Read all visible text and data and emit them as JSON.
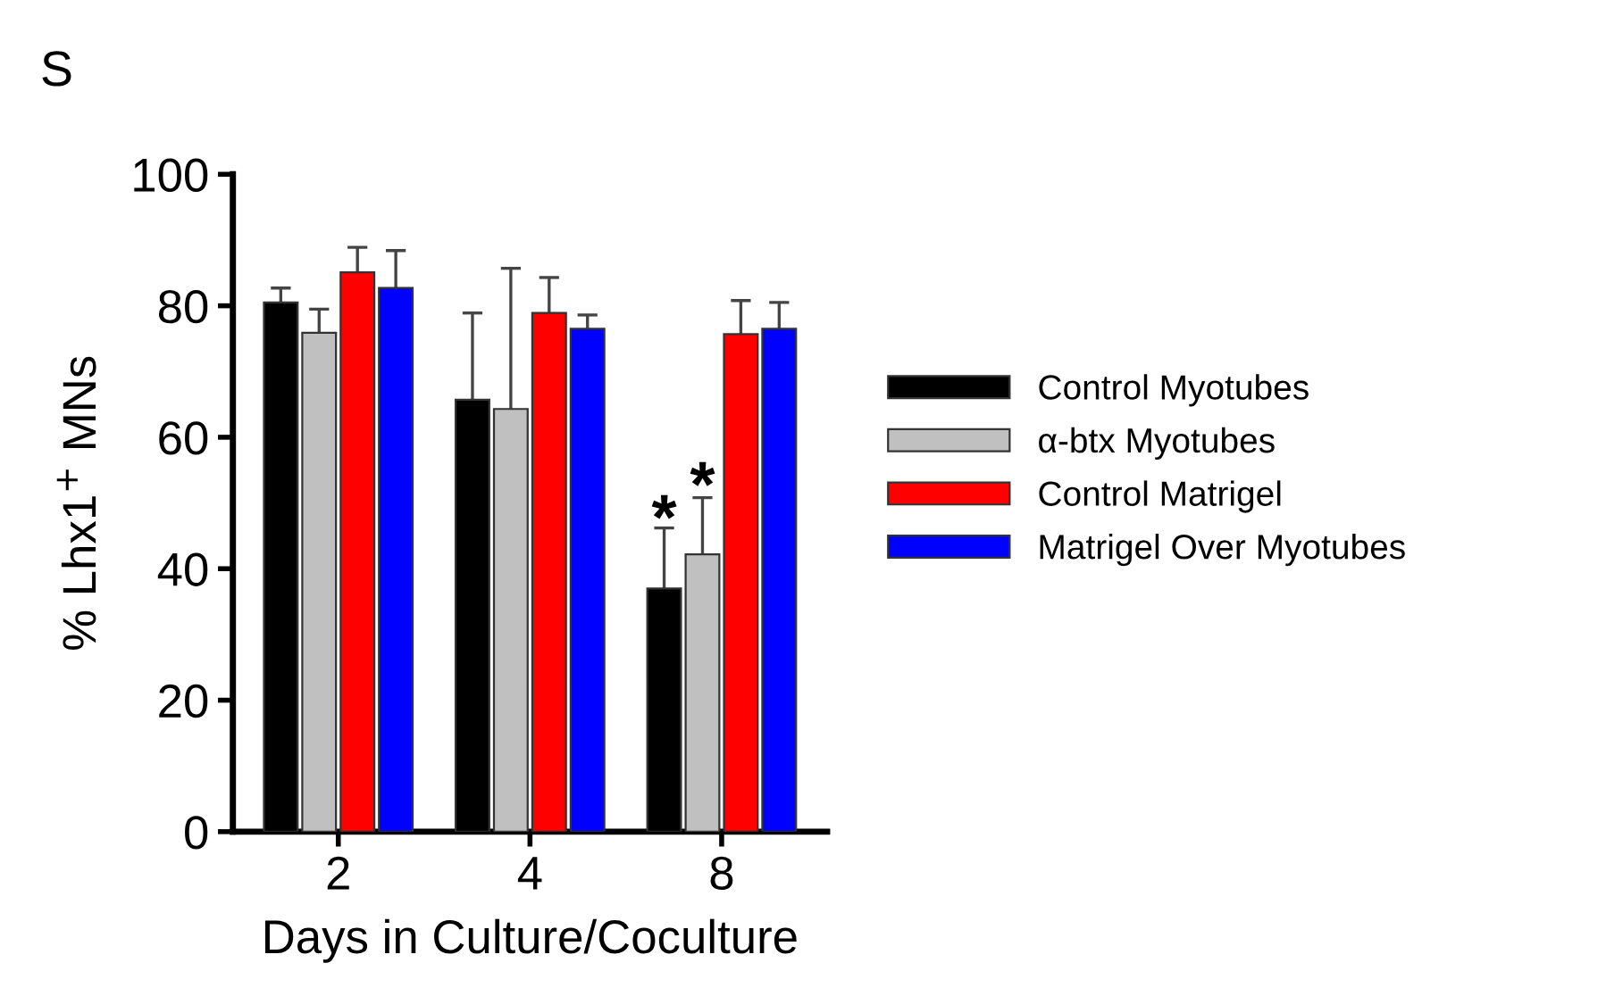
{
  "chart_data": {
    "type": "bar",
    "title": "S",
    "xlabel": "Days in Culture/Coculture",
    "ylabel": "% Lhx1$^{+}$ MNs",
    "categories": [
      "2",
      "4",
      "8"
    ],
    "series": [
      {
        "name": "Control Myotubes",
        "color": "#000000",
        "values": [
          80.5,
          65.7,
          37.0
        ],
        "errors": [
          2.2,
          13.2,
          9.2
        ]
      },
      {
        "name": "α-btx Myotubes",
        "color": "#c0c0c0",
        "values": [
          75.9,
          64.3,
          42.2
        ],
        "errors": [
          3.6,
          21.4,
          8.6
        ]
      },
      {
        "name": "Control Matrigel",
        "color": "#ff0000",
        "values": [
          85.1,
          78.9,
          75.7
        ],
        "errors": [
          3.8,
          5.4,
          5.1
        ]
      },
      {
        "name": "Matrigel Over Myotubes",
        "color": "#0000ff",
        "values": [
          82.7,
          76.5,
          76.5
        ],
        "errors": [
          5.7,
          2.1,
          4.0
        ]
      }
    ],
    "annotations": [
      {
        "text": "*",
        "x": "8",
        "y": 47
      },
      {
        "text": "*",
        "x": "8",
        "y": 52
      }
    ],
    "ylim": [
      0,
      100
    ],
    "yticks": [
      0,
      20,
      40,
      60,
      80,
      100
    ],
    "grid": false,
    "legend": "right"
  }
}
